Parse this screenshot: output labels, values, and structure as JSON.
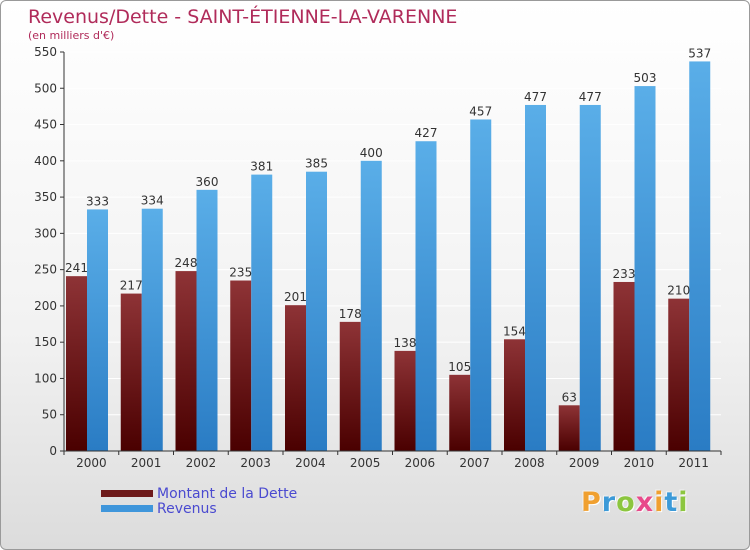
{
  "title": "Revenus/Dette - SAINT-ÉTIENNE-LA-VARENNE",
  "subtitle": "(en milliers d'€)",
  "logo": {
    "text": "Proxiti",
    "letters": [
      {
        "char": "P",
        "color": "#f0a030"
      },
      {
        "char": "r",
        "color": "#3c9ad8"
      },
      {
        "char": "o",
        "color": "#8cc63f"
      },
      {
        "char": "x",
        "color": "#e84a8a"
      },
      {
        "char": "i",
        "color": "#f0a030"
      },
      {
        "char": "t",
        "color": "#3c9ad8"
      },
      {
        "char": "i",
        "color": "#8cc63f"
      }
    ]
  },
  "legend": [
    {
      "label": "Montant de la Dette",
      "color": "#6e1a1a"
    },
    {
      "label": "Revenus",
      "color": "#3f96db"
    }
  ],
  "colors": {
    "dette_top": "#8e3336",
    "dette_bottom": "#4a0000",
    "revenus_top": "#5aaee8",
    "revenus_bottom": "#2a7cc4",
    "grid": "#ffffff",
    "axis": "#333333",
    "label": "#333333"
  },
  "chart_data": {
    "type": "bar",
    "title": "Revenus/Dette - SAINT-ÉTIENNE-LA-VARENNE",
    "subtitle": "(en milliers d'€)",
    "xlabel": "",
    "ylabel": "",
    "ylim": [
      0,
      550
    ],
    "yticks": [
      0,
      50,
      100,
      150,
      200,
      250,
      300,
      350,
      400,
      450,
      500,
      550
    ],
    "grid": true,
    "legend_position": "bottom-left",
    "categories": [
      "2000",
      "2001",
      "2002",
      "2003",
      "2004",
      "2005",
      "2006",
      "2007",
      "2008",
      "2009",
      "2010",
      "2011"
    ],
    "series": [
      {
        "name": "Montant de la Dette",
        "values": [
          241,
          217,
          248,
          235,
          201,
          178,
          138,
          105,
          154,
          63,
          233,
          210
        ]
      },
      {
        "name": "Revenus",
        "values": [
          333,
          334,
          360,
          381,
          385,
          400,
          427,
          457,
          477,
          477,
          503,
          537
        ]
      }
    ]
  }
}
